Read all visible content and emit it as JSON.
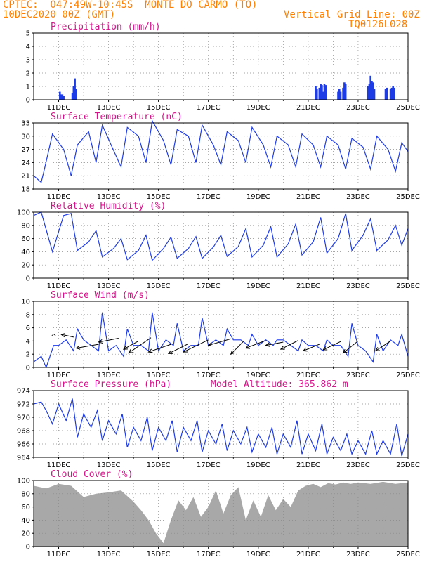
{
  "header": {
    "line1": "CPTEC:  047:49W-10:45S  MONTE DO CARMO (TO)",
    "line2": "10DEC2020 00Z (GMT)",
    "grid_note": "Vertical Grid Line: 00Z",
    "model": "TQ0126L028"
  },
  "colors": {
    "header": "#ff8000",
    "title": "#d4148a",
    "line": "#1e3ce6",
    "bar": "#1e3ce6",
    "cloud": "#a8a8a8"
  },
  "chart_data": [
    {
      "type": "bar",
      "title": "Precipitation (mm/h)",
      "ylim": [
        0,
        5
      ],
      "yticks": [
        "0",
        "1",
        "2",
        "3",
        "4",
        "5"
      ],
      "xticks": [
        "11DEC",
        "13DEC",
        "15DEC",
        "17DEC",
        "19DEC",
        "21DEC",
        "23DEC",
        "25DEC"
      ],
      "x_unit": "day offset from 10DEC2020 00Z",
      "x": [
        1.05,
        1.1,
        1.15,
        1.2,
        1.55,
        1.6,
        1.65,
        1.7,
        11.3,
        11.35,
        11.45,
        11.5,
        11.55,
        11.6,
        11.65,
        11.7,
        12.2,
        12.25,
        12.3,
        12.4,
        12.45,
        12.5,
        13.4,
        13.45,
        13.5,
        13.55,
        13.6,
        13.65,
        14.1,
        14.15,
        14.3,
        14.35,
        14.4,
        14.45
      ],
      "values": [
        0.6,
        0.4,
        0.4,
        0.3,
        0.5,
        1.0,
        1.6,
        0.8,
        1.0,
        0.8,
        0.9,
        1.2,
        1.1,
        0.6,
        1.2,
        1.1,
        0.6,
        0.8,
        0.6,
        0.9,
        1.3,
        1.2,
        1.0,
        1.2,
        1.8,
        1.4,
        1.3,
        0.8,
        0.8,
        0.9,
        0.8,
        0.9,
        1.0,
        0.9
      ]
    },
    {
      "type": "line",
      "title": "Surface Temperature (nC)",
      "ylim": [
        18,
        33
      ],
      "yticks": [
        "18",
        "21",
        "24",
        "27",
        "30",
        "33"
      ],
      "xticks": [
        "11DEC",
        "13DEC",
        "15DEC",
        "17DEC",
        "19DEC",
        "21DEC",
        "23DEC",
        "25DEC"
      ],
      "x": [
        0,
        0.3,
        0.45,
        0.75,
        1.2,
        1.5,
        1.75,
        2.2,
        2.5,
        2.75,
        3.1,
        3.5,
        3.75,
        4.2,
        4.5,
        4.75,
        5.2,
        5.5,
        5.75,
        6.2,
        6.5,
        6.75,
        7.2,
        7.5,
        7.75,
        8.2,
        8.5,
        8.75,
        9.2,
        9.5,
        9.75,
        10.2,
        10.5,
        10.75,
        11.2,
        11.5,
        11.75,
        12.2,
        12.5,
        12.75,
        13.2,
        13.5,
        13.75,
        14.2,
        14.5,
        14.75,
        15
      ],
      "values": [
        21,
        19.5,
        23,
        30.5,
        27,
        21,
        28,
        31,
        24,
        32.5,
        28,
        23,
        32,
        30,
        24,
        33.5,
        29,
        23.5,
        31.5,
        30,
        24,
        32.5,
        28,
        23.5,
        31,
        29,
        24,
        32,
        28,
        23,
        30,
        28,
        23,
        30.5,
        28,
        23,
        30,
        28,
        22.5,
        29.5,
        27.5,
        22.5,
        30,
        27,
        22,
        28.5,
        26.5
      ]
    },
    {
      "type": "line",
      "title": "Relative Humidity (%)",
      "ylim": [
        0,
        100
      ],
      "yticks": [
        "0",
        "20",
        "40",
        "60",
        "80",
        "100"
      ],
      "xticks": [
        "11DEC",
        "13DEC",
        "15DEC",
        "17DEC",
        "19DEC",
        "21DEC",
        "23DEC",
        "25DEC"
      ],
      "x": [
        0,
        0.3,
        0.75,
        1.2,
        1.5,
        1.75,
        2.2,
        2.5,
        2.75,
        3.2,
        3.5,
        3.75,
        4.2,
        4.5,
        4.75,
        5.2,
        5.5,
        5.75,
        6.2,
        6.5,
        6.75,
        7.2,
        7.5,
        7.75,
        8.2,
        8.5,
        8.75,
        9.2,
        9.5,
        9.75,
        10.2,
        10.5,
        10.75,
        11.2,
        11.5,
        11.75,
        12.2,
        12.5,
        12.75,
        13.2,
        13.5,
        13.75,
        14.2,
        14.5,
        14.75,
        15
      ],
      "values": [
        95,
        100,
        40,
        95,
        98,
        42,
        55,
        72,
        32,
        45,
        60,
        28,
        42,
        65,
        27,
        45,
        62,
        30,
        45,
        63,
        30,
        47,
        65,
        33,
        48,
        75,
        32,
        50,
        78,
        32,
        52,
        82,
        35,
        55,
        92,
        38,
        60,
        98,
        42,
        65,
        90,
        42,
        58,
        80,
        50,
        75
      ]
    },
    {
      "type": "line",
      "title": "Surface Wind (m/s)",
      "ylim": [
        0,
        12
      ],
      "yticks": [
        "0",
        "2",
        "4",
        "6",
        "8",
        "10"
      ],
      "xticks": [
        "11DEC",
        "13DEC",
        "15DEC",
        "17DEC",
        "19DEC",
        "21DEC",
        "23DEC",
        "25DEC"
      ],
      "x": [
        0,
        0.3,
        0.5,
        0.8,
        1.0,
        1.3,
        1.6,
        1.75,
        2.0,
        2.3,
        2.6,
        2.75,
        3.0,
        3.3,
        3.6,
        3.75,
        4.0,
        4.3,
        4.6,
        4.75,
        5.0,
        5.3,
        5.6,
        5.75,
        6.0,
        6.3,
        6.6,
        6.75,
        7.0,
        7.3,
        7.6,
        7.75,
        8.0,
        8.3,
        8.6,
        8.75,
        9.0,
        9.3,
        9.6,
        9.75,
        10.0,
        10.3,
        10.6,
        10.75,
        11.0,
        11.3,
        11.6,
        11.75,
        12.0,
        12.3,
        12.6,
        12.75,
        13.0,
        13.3,
        13.6,
        13.75,
        14.0,
        14.3,
        14.6,
        14.75,
        15.0
      ],
      "values": [
        1,
        2,
        0,
        4,
        4,
        5,
        3,
        7,
        5,
        4,
        3,
        10,
        3,
        4,
        2,
        7,
        4,
        4,
        3,
        10,
        3,
        5,
        4,
        8,
        3,
        4,
        4,
        9,
        4,
        5,
        4,
        7,
        5,
        5,
        4,
        6,
        4,
        5,
        4,
        5,
        5,
        4,
        3,
        5,
        4,
        4,
        3,
        5,
        4,
        4,
        2,
        8,
        4,
        3,
        1,
        6,
        3,
        5,
        4,
        6,
        2
      ],
      "vector_labels": [
        "^"
      ]
    },
    {
      "type": "line",
      "title": "Surface Pressure (hPa)",
      "annotation": "Model Altitude: 365.862 m",
      "ylim": [
        964,
        974
      ],
      "yticks": [
        "964",
        "966",
        "968",
        "970",
        "972",
        "974"
      ],
      "xticks": [
        "11DEC",
        "13DEC",
        "15DEC",
        "17DEC",
        "19DEC",
        "21DEC",
        "23DEC",
        "25DEC"
      ],
      "x": [
        0,
        0.3,
        0.5,
        0.75,
        1.0,
        1.3,
        1.55,
        1.75,
        2.0,
        2.3,
        2.55,
        2.75,
        3.0,
        3.3,
        3.55,
        3.75,
        4.0,
        4.3,
        4.55,
        4.75,
        5.0,
        5.3,
        5.55,
        5.75,
        6.0,
        6.3,
        6.55,
        6.75,
        7.0,
        7.3,
        7.55,
        7.75,
        8.0,
        8.3,
        8.55,
        8.75,
        9.0,
        9.3,
        9.55,
        9.75,
        10.0,
        10.3,
        10.55,
        10.75,
        11.0,
        11.3,
        11.55,
        11.75,
        12.0,
        12.3,
        12.55,
        12.75,
        13.0,
        13.3,
        13.55,
        13.75,
        14.0,
        14.3,
        14.55,
        14.75,
        15.0
      ],
      "values": [
        972,
        972.3,
        971,
        969,
        972,
        969.5,
        972.8,
        967,
        970.5,
        968.5,
        971,
        966.5,
        969.5,
        967.5,
        970.5,
        965.5,
        968.5,
        966.5,
        970,
        965,
        968.5,
        966.5,
        969.5,
        964.8,
        968.5,
        966.5,
        969.5,
        964.8,
        968,
        966,
        969,
        965,
        968,
        966,
        968.5,
        964.8,
        967.5,
        965.5,
        968.5,
        964.5,
        967.5,
        965.5,
        969.5,
        964.5,
        967.5,
        965,
        969,
        964.5,
        967,
        965,
        967.5,
        964.5,
        966.5,
        964.5,
        968,
        964.5,
        966.5,
        964.5,
        969,
        964.2,
        967.5
      ]
    },
    {
      "type": "area",
      "title": "Cloud Cover (%)",
      "ylim": [
        0,
        100
      ],
      "yticks": [
        "0",
        "20",
        "40",
        "60",
        "80",
        "100"
      ],
      "xticks": [
        "11DEC",
        "13DEC",
        "15DEC",
        "17DEC",
        "19DEC",
        "21DEC",
        "23DEC",
        "25DEC"
      ],
      "x": [
        0,
        0.5,
        1,
        1.5,
        2,
        2.5,
        3,
        3.5,
        4,
        4.3,
        4.6,
        4.9,
        5.2,
        5.5,
        5.8,
        6.1,
        6.4,
        6.7,
        7,
        7.3,
        7.6,
        7.9,
        8.2,
        8.5,
        8.8,
        9.1,
        9.4,
        9.7,
        10,
        10.3,
        10.6,
        10.9,
        11.2,
        11.5,
        11.8,
        12.1,
        12.4,
        12.7,
        13,
        13.5,
        14,
        14.5,
        15
      ],
      "values": [
        92,
        88,
        95,
        92,
        75,
        80,
        82,
        85,
        68,
        55,
        40,
        20,
        5,
        40,
        70,
        55,
        75,
        45,
        60,
        85,
        50,
        78,
        90,
        40,
        70,
        45,
        78,
        55,
        72,
        60,
        85,
        92,
        95,
        90,
        96,
        94,
        97,
        95,
        97,
        95,
        98,
        95,
        97
      ]
    }
  ]
}
